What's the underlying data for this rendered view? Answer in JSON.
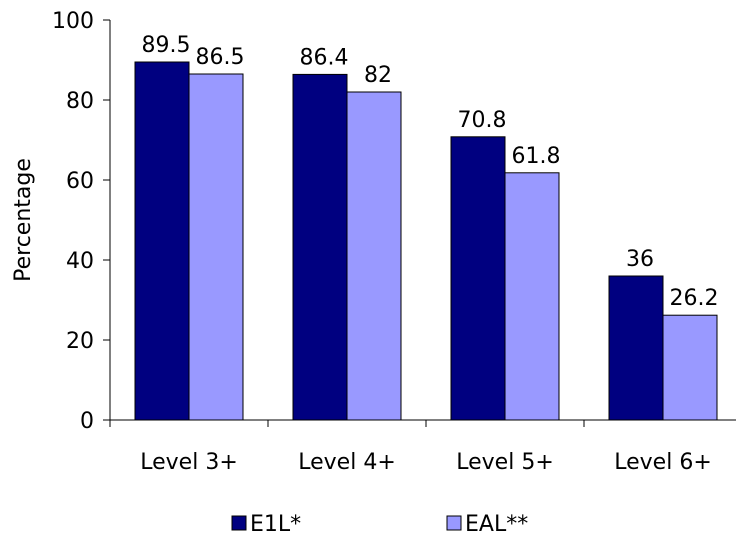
{
  "chart_data": {
    "type": "bar",
    "title": "",
    "xlabel": "",
    "ylabel": "Percentage",
    "ylim": [
      0,
      100
    ],
    "yticks": [
      0,
      20,
      40,
      60,
      80,
      100
    ],
    "categories": [
      "Level 3+",
      "Level 4+",
      "Level 5+",
      "Level 6+"
    ],
    "series": [
      {
        "name": "E1L*",
        "values": [
          89.5,
          86.4,
          70.8,
          36
        ],
        "labels": [
          "89.5",
          "86.4",
          "70.8",
          "36"
        ],
        "color": "#000080"
      },
      {
        "name": "EAL**",
        "values": [
          86.5,
          82,
          61.8,
          26.2
        ],
        "labels": [
          "86.5",
          "82",
          "61.8",
          "26.2"
        ],
        "color": "#9999FF"
      }
    ],
    "grid": false,
    "legend_position": "bottom"
  }
}
